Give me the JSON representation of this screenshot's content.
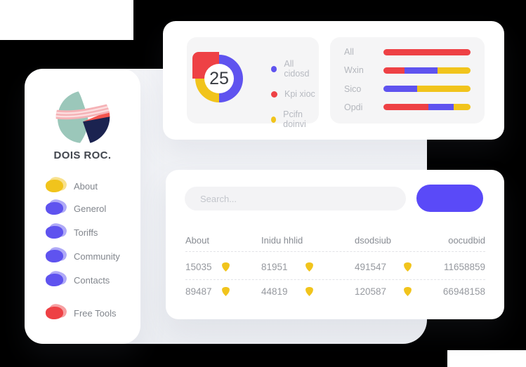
{
  "colors": {
    "red": "#ee4145",
    "purple": "#5f53ef",
    "yellow": "#f1c41c",
    "button": "#5a4af8",
    "teal": "#9bc7ba",
    "navy": "#1b2350",
    "logo_red": "#f3554e",
    "pink": "#f5b2b6",
    "pink_light": "#fcdfe0"
  },
  "sidebar": {
    "brand": "DOIS ROC.",
    "items": [
      {
        "label": "About",
        "color_key": "yellow"
      },
      {
        "label": "Generol",
        "color_key": "purple"
      },
      {
        "label": "Toriffs",
        "color_key": "purple"
      },
      {
        "label": "Community",
        "color_key": "purple"
      },
      {
        "label": "Contacts",
        "color_key": "purple"
      },
      {
        "label": "Free Tools",
        "color_key": "red"
      }
    ]
  },
  "chart_data": [
    {
      "type": "pie",
      "style": "donut",
      "center_label": "25",
      "segments": [
        {
          "label": "All cidosd",
          "color_key": "purple",
          "value": 50
        },
        {
          "label": "Pcifn doinvi",
          "color_key": "yellow",
          "value": 25
        },
        {
          "label": "Kpi xioc",
          "color_key": "red",
          "value": 25
        }
      ],
      "legend": [
        {
          "label": "All cidosd",
          "color_key": "purple"
        },
        {
          "label": "Kpi xioc",
          "color_key": "red"
        },
        {
          "label": "Pcifn doinvi",
          "color_key": "yellow"
        }
      ],
      "legend_position": "right"
    },
    {
      "type": "bar",
      "orientation": "horizontal",
      "stacked": true,
      "categories": [
        "All",
        "Wxin",
        "Sico",
        "Opdi"
      ],
      "rows": [
        {
          "label": "All",
          "segments": [
            {
              "color_key": "red",
              "frac": 1.0
            }
          ]
        },
        {
          "label": "Wxin",
          "segments": [
            {
              "color_key": "red",
              "frac": 0.24
            },
            {
              "color_key": "purple",
              "frac": 0.38
            },
            {
              "color_key": "yellow",
              "frac": 0.38
            }
          ]
        },
        {
          "label": "Sico",
          "segments": [
            {
              "color_key": "purple",
              "frac": 0.39
            },
            {
              "color_key": "yellow",
              "frac": 0.61
            }
          ]
        },
        {
          "label": "Opdi",
          "segments": [
            {
              "color_key": "red",
              "frac": 0.52
            },
            {
              "color_key": "purple",
              "frac": 0.29
            },
            {
              "color_key": "yellow",
              "frac": 0.19
            }
          ]
        }
      ]
    }
  ],
  "table_card": {
    "search_placeholder": "Search...",
    "button_label": "",
    "columns": [
      "About",
      "Inidu hhlid",
      "dsodsiub",
      "oocudbid"
    ],
    "rows": [
      {
        "cells": [
          "15035",
          "81951",
          "491547",
          "11658859"
        ]
      },
      {
        "cells": [
          "89487",
          "44819",
          "120587",
          "66948158"
        ]
      }
    ]
  }
}
